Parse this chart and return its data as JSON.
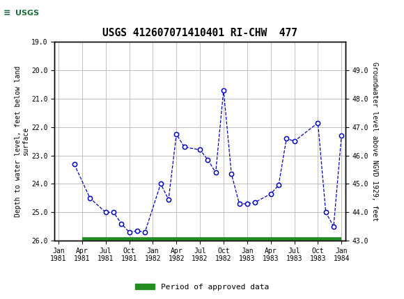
{
  "title": "USGS 412607071410401 RI-CHW  477",
  "header_color": "#1a6b3a",
  "background_color": "#ffffff",
  "plot_bg_color": "#ffffff",
  "grid_color": "#c0c0c0",
  "line_color": "#0000cc",
  "marker_color": "#0000cc",
  "marker_face": "#ffffff",
  "approved_bar_color": "#228B22",
  "ylabel_left": "Depth to water level, feet below land\nsurface",
  "ylabel_right": "Groundwater level above NGVD 1929, feet",
  "ylim_left": [
    26.0,
    19.0
  ],
  "ylim_right": [
    43.0,
    50.0
  ],
  "yticks_left": [
    19.0,
    20.0,
    21.0,
    22.0,
    23.0,
    24.0,
    25.0,
    26.0
  ],
  "yticks_right": [
    43.0,
    44.0,
    45.0,
    46.0,
    47.0,
    48.0,
    49.0
  ],
  "xtick_labels": [
    "Jan\n1981",
    "Apr\n1981",
    "Jul\n1981",
    "Oct\n1981",
    "Jan\n1982",
    "Apr\n1982",
    "Jul\n1982",
    "Oct\n1982",
    "Jan\n1983",
    "Apr\n1983",
    "Jul\n1983",
    "Oct\n1983",
    "Jan\n1984"
  ],
  "xtick_positions": [
    0,
    3,
    6,
    9,
    12,
    15,
    18,
    21,
    24,
    27,
    30,
    33,
    36
  ],
  "data_x": [
    2,
    4,
    6,
    7,
    8,
    9,
    10,
    11,
    13,
    14,
    15,
    16,
    18,
    19,
    20,
    21,
    22,
    23,
    24,
    25,
    27,
    28,
    29,
    30,
    33,
    34,
    35,
    36
  ],
  "data_y": [
    23.3,
    24.5,
    25.0,
    25.0,
    25.4,
    25.7,
    25.65,
    25.7,
    24.0,
    24.55,
    22.25,
    22.7,
    22.8,
    23.15,
    23.6,
    20.7,
    23.65,
    24.7,
    24.7,
    24.65,
    24.35,
    24.05,
    22.4,
    22.5,
    21.85,
    25.0,
    25.5,
    22.3
  ],
  "legend_label": "Period of approved data",
  "approved_x_start": 3,
  "approved_x_end": 36,
  "xlim": [
    -0.5,
    36.5
  ]
}
